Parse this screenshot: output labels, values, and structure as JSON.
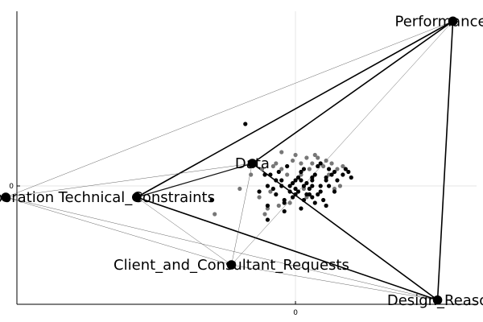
{
  "chart_data": {
    "type": "scatter",
    "title": "",
    "xlabel": "",
    "ylabel": "",
    "xlim": [
      -1.0,
      0.65
    ],
    "ylim": [
      -0.42,
      0.62
    ],
    "grid": true,
    "legend": "none",
    "x_ticks": [
      {
        "value": 0,
        "label": "0"
      }
    ],
    "y_ticks": [
      {
        "value": 0,
        "label": "0"
      }
    ],
    "colors": {
      "dark_points": "#000000",
      "gray_points": "#777777",
      "grid": "#e6e6e6",
      "axis": "#000000"
    },
    "nodes": [
      {
        "name": "Performance_Pa",
        "x": 0.565,
        "y": 0.585
      },
      {
        "name": "Data",
        "x": -0.155,
        "y": 0.08
      },
      {
        "name": "Collaboration",
        "x": -1.04,
        "y": -0.04
      },
      {
        "name": "Technical_Constraints",
        "x": -0.57,
        "y": -0.04
      },
      {
        "name": "Client_and_Consultant_Requests",
        "x": -0.23,
        "y": -0.28
      },
      {
        "name": "Design_Reaso",
        "x": 0.51,
        "y": -0.405
      }
    ],
    "edges": [
      {
        "from": "Performance_Pa",
        "to": "Data",
        "weight": "heavy"
      },
      {
        "from": "Performance_Pa",
        "to": "Technical_Constraints",
        "weight": "heavy"
      },
      {
        "from": "Performance_Pa",
        "to": "Design_Reaso",
        "weight": "heavy"
      },
      {
        "from": "Technical_Constraints",
        "to": "Design_Reaso",
        "weight": "heavy"
      },
      {
        "from": "Data",
        "to": "Design_Reaso",
        "weight": "heavy"
      },
      {
        "from": "Data",
        "to": "Technical_Constraints",
        "weight": "medium"
      },
      {
        "from": "Performance_Pa",
        "to": "Collaboration",
        "weight": "light"
      },
      {
        "from": "Performance_Pa",
        "to": "Client_and_Consultant_Requests",
        "weight": "light"
      },
      {
        "from": "Collaboration",
        "to": "Data",
        "weight": "light"
      },
      {
        "from": "Collaboration",
        "to": "Client_and_Consultant_Requests",
        "weight": "light"
      },
      {
        "from": "Collaboration",
        "to": "Design_Reaso",
        "weight": "light"
      },
      {
        "from": "Technical_Constraints",
        "to": "Client_and_Consultant_Requests",
        "weight": "light"
      },
      {
        "from": "Client_and_Consultant_Requests",
        "to": "Data",
        "weight": "light"
      },
      {
        "from": "Client_and_Consultant_Requests",
        "to": "Design_Reaso",
        "weight": "light"
      }
    ],
    "series": [
      {
        "color": "dark",
        "points": [
          [
            -0.18,
            0.22
          ],
          [
            -0.3,
            -0.05
          ],
          [
            0.19,
            0.05
          ],
          [
            0.12,
            0.06
          ],
          [
            0.02,
            0.05
          ],
          [
            0.11,
            0.02
          ],
          [
            0.15,
            0.02
          ],
          [
            0.06,
            0.0
          ],
          [
            0.03,
            0.0
          ],
          [
            -0.02,
            0.0
          ],
          [
            -0.08,
            -0.01
          ],
          [
            0.0,
            -0.03
          ],
          [
            0.05,
            -0.03
          ],
          [
            0.09,
            -0.02
          ],
          [
            0.1,
            -0.05
          ],
          [
            0.14,
            -0.02
          ],
          [
            -0.05,
            0.02
          ],
          [
            -0.09,
            0.04
          ],
          [
            -0.04,
            -0.06
          ],
          [
            -0.1,
            -0.07
          ],
          [
            -0.04,
            -0.09
          ],
          [
            0.02,
            -0.08
          ],
          [
            0.07,
            0.04
          ],
          [
            0.08,
            0.07
          ],
          [
            0.13,
            0.04
          ],
          [
            0.17,
            0.04
          ],
          [
            0.11,
            -0.07
          ],
          [
            0.04,
            -0.03
          ],
          [
            0.07,
            -0.06
          ],
          [
            -0.13,
            -0.02
          ],
          [
            -0.11,
            0.04
          ],
          [
            -0.04,
            -0.05
          ],
          [
            0.06,
            0.03
          ],
          [
            0.01,
            0.03
          ],
          [
            -0.01,
            -0.04
          ],
          [
            0.05,
            -0.01
          ],
          [
            0.0,
            0.02
          ],
          [
            0.12,
            0.0
          ],
          [
            0.03,
            -0.05
          ],
          [
            -0.06,
            0.05
          ],
          [
            -0.1,
            0.0
          ],
          [
            -0.07,
            -0.03
          ],
          [
            0.01,
            -0.02
          ],
          [
            -0.01,
            0.01
          ],
          [
            0.06,
            0.02
          ],
          [
            0.09,
            0.0
          ],
          [
            0.14,
            0.05
          ],
          [
            0.18,
            0.06
          ],
          [
            0.2,
            0.03
          ],
          [
            -0.1,
            -0.12
          ],
          [
            -0.03,
            0.07
          ],
          [
            0.09,
            0.08
          ],
          [
            -0.05,
            0.0
          ],
          [
            0.04,
            0.01
          ],
          [
            0.06,
            -0.04
          ],
          [
            0.02,
            0.02
          ],
          [
            -0.02,
            -0.02
          ],
          [
            0.0,
            -0.01
          ],
          [
            0.03,
            0.06
          ],
          [
            0.11,
            0.03
          ],
          [
            0.08,
            -0.03
          ],
          [
            -0.07,
            0.02
          ]
        ]
      },
      {
        "color": "gray",
        "points": [
          [
            0.0,
            0.11
          ],
          [
            0.04,
            0.1
          ],
          [
            0.08,
            0.1
          ],
          [
            -0.05,
            0.12
          ],
          [
            -0.07,
            0.08
          ],
          [
            -0.12,
            0.06
          ],
          [
            0.02,
            0.08
          ],
          [
            -0.03,
            0.04
          ],
          [
            -0.05,
            0.06
          ],
          [
            0.06,
            0.08
          ],
          [
            0.12,
            0.04
          ],
          [
            0.15,
            0.06
          ],
          [
            0.17,
            0.07
          ],
          [
            -0.13,
            -0.04
          ],
          [
            -0.1,
            -0.08
          ],
          [
            -0.06,
            -0.07
          ],
          [
            -0.02,
            -0.06
          ],
          [
            0.03,
            -0.01
          ],
          [
            0.05,
            0.06
          ],
          [
            0.1,
            0.07
          ],
          [
            0.13,
            0.08
          ],
          [
            -0.09,
            -0.02
          ],
          [
            -0.11,
            -0.1
          ],
          [
            -0.08,
            0.07
          ],
          [
            -0.01,
            0.09
          ],
          [
            -0.2,
            -0.01
          ],
          [
            -0.16,
            0.04
          ],
          [
            0.16,
            0.0
          ],
          [
            0.04,
            -0.04
          ],
          [
            -0.29,
            -0.1
          ],
          [
            0.02,
            0.04
          ],
          [
            0.11,
            0.09
          ],
          [
            0.07,
            0.11
          ],
          [
            0.14,
            -0.01
          ]
        ]
      }
    ]
  }
}
